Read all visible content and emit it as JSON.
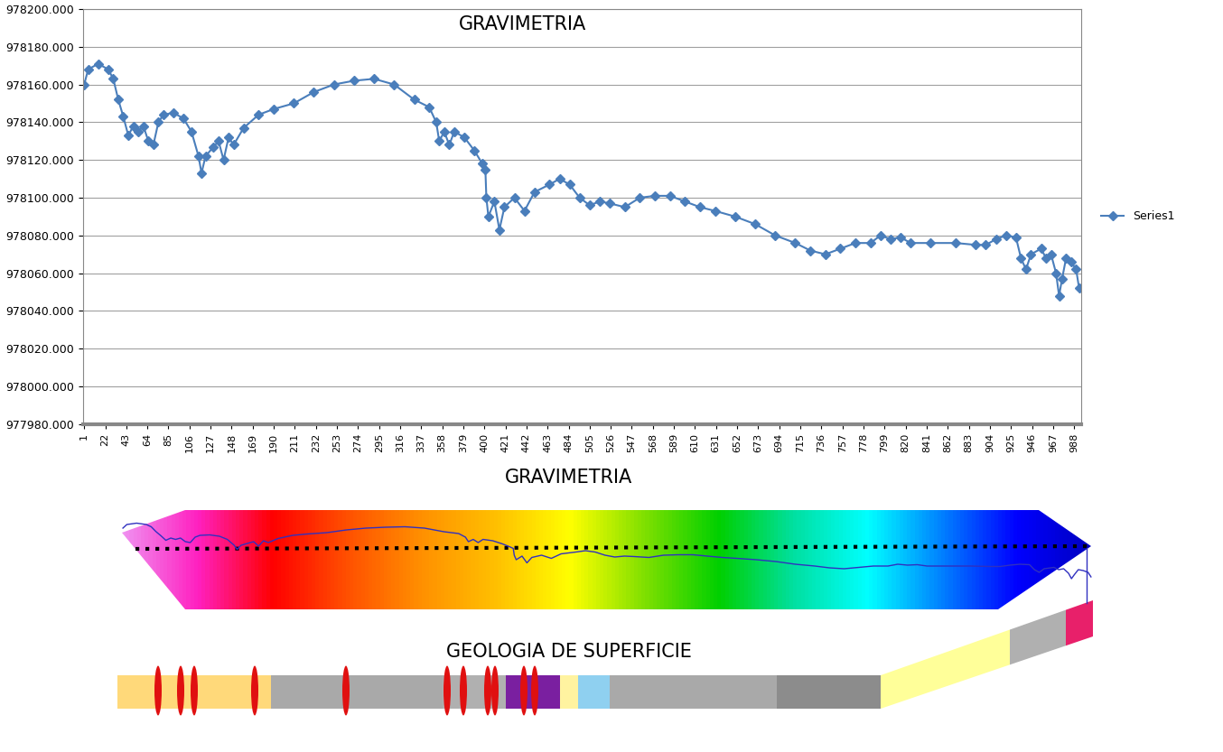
{
  "chart_data": {
    "type": "line",
    "title": "GRAVIMETRIA",
    "x": [
      1,
      5,
      15,
      25,
      30,
      35,
      40,
      45,
      50,
      55,
      60,
      65,
      70,
      75,
      80,
      90,
      100,
      108,
      115,
      118,
      122,
      130,
      135,
      140,
      145,
      150,
      160,
      175,
      190,
      210,
      230,
      250,
      270,
      290,
      310,
      330,
      345,
      352,
      355,
      360,
      365,
      370,
      380,
      390,
      398,
      401,
      402,
      404,
      410,
      415,
      420,
      430,
      440,
      450,
      465,
      475,
      485,
      495,
      505,
      515,
      525,
      540,
      555,
      570,
      585,
      600,
      615,
      630,
      650,
      670,
      690,
      710,
      725,
      740,
      755,
      770,
      785,
      795,
      805,
      815,
      825,
      845,
      870,
      890,
      900,
      910,
      920,
      930,
      935,
      940,
      945,
      955,
      960,
      965,
      970,
      973,
      976,
      980,
      985,
      990,
      993
    ],
    "series": [
      {
        "name": "Series1",
        "color": "#4a7ebb",
        "marker": "diamond",
        "line_style": "solid",
        "values": [
          978160,
          978168,
          978171,
          978168,
          978163,
          978152,
          978143,
          978133,
          978138,
          978135,
          978138,
          978130,
          978128,
          978140,
          978144,
          978145,
          978142,
          978135,
          978122,
          978113,
          978122,
          978127,
          978130,
          978120,
          978132,
          978128,
          978137,
          978144,
          978147,
          978150,
          978156,
          978160,
          978162,
          978163,
          978160,
          978152,
          978148,
          978140,
          978130,
          978135,
          978128,
          978135,
          978132,
          978125,
          978118,
          978115,
          978100,
          978090,
          978098,
          978083,
          978095,
          978100,
          978093,
          978103,
          978107,
          978110,
          978107,
          978100,
          978096,
          978098,
          978097,
          978095,
          978100,
          978101,
          978101,
          978098,
          978095,
          978093,
          978090,
          978086,
          978080,
          978076,
          978072,
          978070,
          978073,
          978076,
          978076,
          978080,
          978078,
          978079,
          978076,
          978076,
          978076,
          978075,
          978075,
          978078,
          978080,
          978079,
          978068,
          978062,
          978070,
          978073,
          978068,
          978070,
          978060,
          978048,
          978057,
          978068,
          978066,
          978062,
          978052
        ]
      }
    ],
    "xlim": [
      0,
      995
    ],
    "xticks": [
      1,
      22,
      43,
      64,
      85,
      106,
      127,
      148,
      169,
      190,
      211,
      232,
      253,
      274,
      295,
      316,
      337,
      358,
      379,
      400,
      421,
      442,
      463,
      484,
      505,
      526,
      547,
      568,
      589,
      610,
      631,
      652,
      673,
      694,
      715,
      736,
      757,
      778,
      799,
      820,
      841,
      862,
      883,
      904,
      925,
      946,
      967,
      988
    ],
    "ylim": [
      977980,
      978200
    ],
    "yticks": [
      {
        "value": 977980,
        "label": "977980.000"
      },
      {
        "value": 978000,
        "label": "978000.000"
      },
      {
        "value": 978020,
        "label": "978020.000"
      },
      {
        "value": 978040,
        "label": "978040.000"
      },
      {
        "value": 978060,
        "label": "978060.000"
      },
      {
        "value": 978080,
        "label": "978080.000"
      },
      {
        "value": 978100,
        "label": "978100.000"
      },
      {
        "value": 978120,
        "label": "978120.000"
      },
      {
        "value": 978140,
        "label": "978140.000"
      },
      {
        "value": 978160,
        "label": "978160.000"
      },
      {
        "value": 978180,
        "label": "978180.000"
      },
      {
        "value": 978200,
        "label": "978200.000"
      }
    ],
    "grid": true,
    "legend": "center left"
  },
  "panels": [
    {
      "title": "GRAVIMETRIA"
    },
    {
      "title": "GEOLOGIA DE SUPERFICIE"
    }
  ]
}
